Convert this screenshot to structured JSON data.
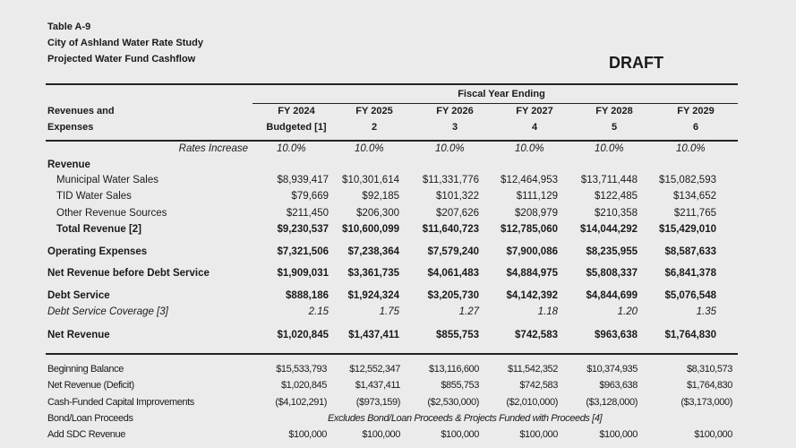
{
  "title": {
    "line1": "Table A-9",
    "line2": "City of Ashland Water Rate Study",
    "line3": "Projected Water Fund Cashflow",
    "draft": "DRAFT"
  },
  "header": {
    "group_label": "Fiscal Year Ending",
    "row_label_line1": "Revenues and",
    "row_label_line2": "Expenses",
    "columns": [
      {
        "year": "FY 2024",
        "sub": "Budgeted [1]"
      },
      {
        "year": "FY 2025",
        "sub": "2"
      },
      {
        "year": "FY 2026",
        "sub": "3"
      },
      {
        "year": "FY 2027",
        "sub": "4"
      },
      {
        "year": "FY 2028",
        "sub": "5"
      },
      {
        "year": "FY 2029",
        "sub": "6"
      }
    ]
  },
  "rows": [
    {
      "label": "Rates Increase",
      "style": "rates",
      "values": [
        "10.0%",
        "10.0%",
        "10.0%",
        "10.0%",
        "10.0%",
        "10.0%"
      ]
    },
    {
      "label": "Revenue",
      "style": "section",
      "values": []
    },
    {
      "label": "Municipal Water Sales",
      "style": "indent",
      "values": [
        "$8,939,417",
        "$10,301,614",
        "$11,331,776",
        "$12,464,953",
        "$13,711,448",
        "$15,082,593"
      ]
    },
    {
      "label": "TID Water Sales",
      "style": "indent",
      "values": [
        "$79,669",
        "$92,185",
        "$101,322",
        "$111,129",
        "$122,485",
        "$134,652"
      ]
    },
    {
      "label": "Other Revenue Sources",
      "style": "indent",
      "values": [
        "$211,450",
        "$206,300",
        "$207,626",
        "$208,979",
        "$210,358",
        "$211,765"
      ]
    },
    {
      "label": "Total Revenue [2]",
      "style": "indent-bold",
      "values": [
        "$9,230,537",
        "$10,600,099",
        "$11,640,723",
        "$12,785,060",
        "$14,044,292",
        "$15,429,010"
      ]
    },
    {
      "label": "Operating Expenses",
      "style": "bold",
      "values": [
        "$7,321,506",
        "$7,238,364",
        "$7,579,240",
        "$7,900,086",
        "$8,235,955",
        "$8,587,633"
      ]
    },
    {
      "label": "Net Revenue before Debt Service",
      "style": "bold",
      "values": [
        "$1,909,031",
        "$3,361,735",
        "$4,061,483",
        "$4,884,975",
        "$5,808,337",
        "$6,841,378"
      ]
    },
    {
      "label": "Debt Service",
      "style": "bold",
      "values": [
        "$888,186",
        "$1,924,324",
        "$3,205,730",
        "$4,142,392",
        "$4,844,699",
        "$5,076,548"
      ]
    },
    {
      "label": "Debt Service Coverage [3]",
      "style": "italic",
      "values": [
        "2.15",
        "1.75",
        "1.27",
        "1.18",
        "1.20",
        "1.35"
      ]
    },
    {
      "label": "Net Revenue",
      "style": "bold",
      "values": [
        "$1,020,845",
        "$1,437,411",
        "$855,753",
        "$742,583",
        "$963,638",
        "$1,764,830"
      ]
    }
  ],
  "balance_rows": [
    {
      "label": "Beginning Balance",
      "values": [
        "$15,533,793",
        "$12,552,347",
        "$13,116,600",
        "$11,542,352",
        "$10,374,935",
        "$8,310,573"
      ]
    },
    {
      "label": "Net Revenue (Deficit)",
      "values": [
        "$1,020,845",
        "$1,437,411",
        "$855,753",
        "$742,583",
        "$963,638",
        "$1,764,830"
      ]
    },
    {
      "label": "Cash-Funded Capital Improvements",
      "values": [
        "($4,102,291)",
        "($973,159)",
        "($2,530,000)",
        "($2,010,000)",
        "($3,128,000)",
        "($3,173,000)"
      ]
    },
    {
      "label": "Bond/Loan Proceeds",
      "note": "Excludes Bond/Loan Proceeds & Projects Funded with Proceeds [4]",
      "values": []
    },
    {
      "label": "Add SDC Revenue",
      "values": [
        "$100,000",
        "$100,000",
        "$100,000",
        "$100,000",
        "$100,000",
        "$100,000"
      ]
    }
  ]
}
